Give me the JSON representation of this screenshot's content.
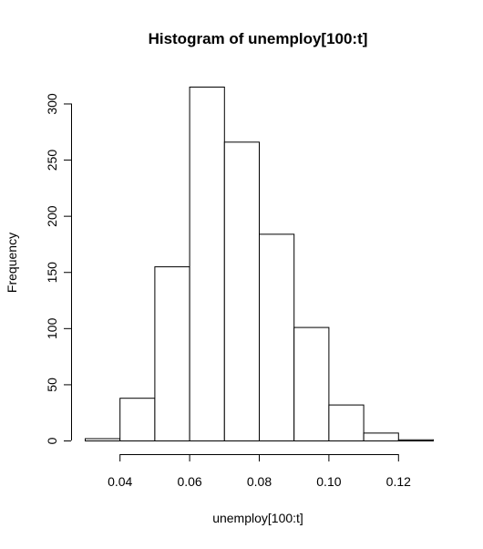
{
  "chart_data": {
    "type": "bar",
    "title": "Histogram of unemploy[100:t]",
    "xlabel": "unemploy[100:t]",
    "ylabel": "Frequency",
    "bins": [
      {
        "start": 0.03,
        "end": 0.04,
        "count": 2
      },
      {
        "start": 0.04,
        "end": 0.05,
        "count": 38
      },
      {
        "start": 0.05,
        "end": 0.06,
        "count": 155
      },
      {
        "start": 0.06,
        "end": 0.07,
        "count": 315
      },
      {
        "start": 0.07,
        "end": 0.08,
        "count": 266
      },
      {
        "start": 0.08,
        "end": 0.09,
        "count": 184
      },
      {
        "start": 0.09,
        "end": 0.1,
        "count": 101
      },
      {
        "start": 0.1,
        "end": 0.11,
        "count": 32
      },
      {
        "start": 0.11,
        "end": 0.12,
        "count": 7
      },
      {
        "start": 0.12,
        "end": 0.13,
        "count": 1
      }
    ],
    "xlim": [
      0.03,
      0.13
    ],
    "ylim": [
      0,
      315
    ],
    "x_ticks": [
      0.04,
      0.06,
      0.08,
      0.1,
      0.12
    ],
    "x_tick_labels": [
      "0.04",
      "0.06",
      "0.08",
      "0.10",
      "0.12"
    ],
    "y_ticks": [
      0,
      50,
      100,
      150,
      200,
      250,
      300
    ],
    "y_tick_labels": [
      "0",
      "50",
      "100",
      "150",
      "200",
      "250",
      "300"
    ],
    "grid": false,
    "colors": {
      "bar_fill": "#ffffff",
      "bar_stroke": "#000000",
      "axis": "#000000"
    }
  }
}
